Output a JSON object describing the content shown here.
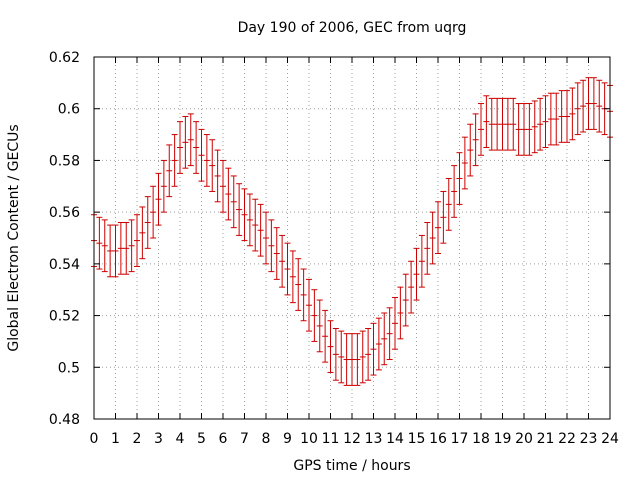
{
  "chart_data": {
    "type": "line",
    "title": "Day 190 of 2006, GEC from uqrg",
    "xlabel": "GPS time / hours",
    "ylabel": "Global Electron Content / GECUs",
    "xlim": [
      0,
      24
    ],
    "ylim": [
      0.48,
      0.62
    ],
    "x_ticks": [
      "0",
      "1",
      "2",
      "3",
      "4",
      "5",
      "6",
      "7",
      "8",
      "9",
      "10",
      "11",
      "12",
      "13",
      "14",
      "15",
      "16",
      "17",
      "18",
      "19",
      "20",
      "21",
      "22",
      "23",
      "24"
    ],
    "y_ticks": [
      "0.48",
      "0.5",
      "0.52",
      "0.54",
      "0.56",
      "0.58",
      "0.6",
      "0.62"
    ],
    "grid": true,
    "series_color": "#cc0000",
    "series": [
      {
        "x": [
          0,
          0.25,
          0.5,
          0.75,
          1,
          1.25,
          1.5,
          1.75,
          2,
          2.25,
          2.5,
          2.75,
          3,
          3.25,
          3.5,
          3.75,
          4,
          4.25,
          4.5,
          4.75,
          5,
          5.25,
          5.5,
          5.75,
          6,
          6.25,
          6.5,
          6.75,
          7,
          7.25,
          7.5,
          7.75,
          8,
          8.25,
          8.5,
          8.75,
          9,
          9.25,
          9.5,
          9.75,
          10,
          10.25,
          10.5,
          10.75,
          11,
          11.25,
          11.5,
          11.75,
          12,
          12.25,
          12.5,
          12.75,
          13,
          13.25,
          13.5,
          13.75,
          14,
          14.25,
          14.5,
          14.75,
          15,
          15.25,
          15.5,
          15.75,
          16,
          16.25,
          16.5,
          16.75,
          17,
          17.25,
          17.5,
          17.75,
          18,
          18.25,
          18.5,
          18.75,
          19,
          19.25,
          19.5,
          19.75,
          20,
          20.25,
          20.5,
          20.75,
          21,
          21.25,
          21.5,
          21.75,
          22,
          22.25,
          22.5,
          22.75,
          23,
          23.25,
          23.5,
          23.75,
          24
        ],
        "y": [
          0.549,
          0.548,
          0.547,
          0.545,
          0.545,
          0.546,
          0.546,
          0.547,
          0.549,
          0.552,
          0.556,
          0.56,
          0.565,
          0.57,
          0.576,
          0.58,
          0.585,
          0.587,
          0.588,
          0.585,
          0.582,
          0.58,
          0.578,
          0.574,
          0.57,
          0.567,
          0.564,
          0.561,
          0.559,
          0.557,
          0.555,
          0.553,
          0.55,
          0.547,
          0.544,
          0.541,
          0.538,
          0.535,
          0.532,
          0.528,
          0.524,
          0.52,
          0.516,
          0.512,
          0.508,
          0.505,
          0.504,
          0.503,
          0.503,
          0.503,
          0.504,
          0.505,
          0.507,
          0.509,
          0.511,
          0.513,
          0.517,
          0.521,
          0.526,
          0.531,
          0.536,
          0.541,
          0.546,
          0.55,
          0.554,
          0.558,
          0.563,
          0.568,
          0.573,
          0.579,
          0.584,
          0.588,
          0.592,
          0.595,
          0.594,
          0.594,
          0.594,
          0.594,
          0.594,
          0.592,
          0.592,
          0.592,
          0.593,
          0.594,
          0.595,
          0.596,
          0.596,
          0.597,
          0.597,
          0.598,
          0.6,
          0.601,
          0.602,
          0.602,
          0.601,
          0.6,
          0.599
        ],
        "error": 0.01
      }
    ]
  }
}
